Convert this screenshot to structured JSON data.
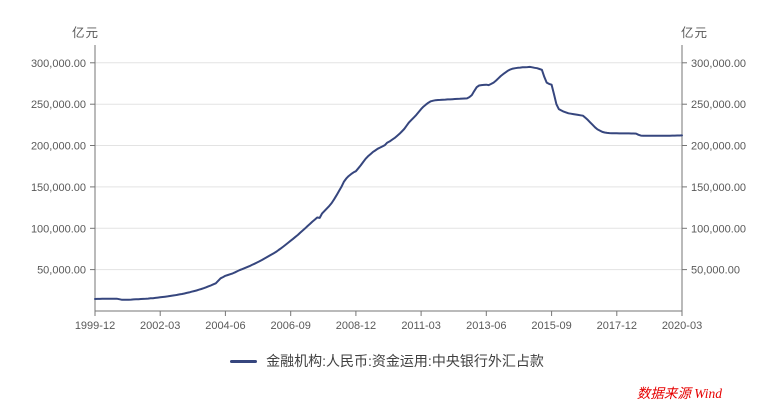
{
  "unit_left": "亿元",
  "unit_right": "亿元",
  "legend": {
    "label": "金融机构:人民币:资金运用:中央银行外汇占款"
  },
  "source": {
    "text": "数据来源 Wind"
  },
  "colors": {
    "line": "#36467e",
    "grid": "#e3e3e3",
    "axis": "#757575",
    "tick_text": "#595959",
    "legend_text": "#404040",
    "source_text": "#e60000"
  },
  "chart_data": {
    "type": "line",
    "title": "",
    "series": [
      {
        "name": "金融机构:人民币:资金运用:中央银行外汇占款",
        "color": "#36467e"
      }
    ],
    "unit": "亿元",
    "x_start": "1999-12",
    "x_end": "2020-03",
    "x_freq": "monthly",
    "x_ticks": [
      "1999-12",
      "2002-03",
      "2004-06",
      "2006-09",
      "2008-12",
      "2011-03",
      "2013-06",
      "2015-09",
      "2017-12",
      "2020-03"
    ],
    "x_tick_interval_months": 27,
    "y_ticks": [
      "50,000.00",
      "100,000.00",
      "150,000.00",
      "200,000.00",
      "250,000.00",
      "300,000.00"
    ],
    "y_tick_values": [
      50000,
      100000,
      150000,
      200000,
      250000,
      300000
    ],
    "ylim": [
      0,
      321500
    ],
    "grid": true,
    "legend_position": "bottom",
    "values": [
      14500,
      14600,
      14600,
      14700,
      14700,
      14800,
      14800,
      14800,
      14900,
      14900,
      14300,
      13700,
      13700,
      13600,
      13700,
      13800,
      14000,
      14100,
      14300,
      14500,
      14600,
      14800,
      15000,
      15300,
      15500,
      15800,
      16200,
      16500,
      16900,
      17300,
      17700,
      18100,
      18600,
      19000,
      19500,
      20100,
      20600,
      21200,
      21900,
      22500,
      23300,
      24000,
      24800,
      25700,
      26600,
      27500,
      28700,
      29800,
      31000,
      32300,
      33500,
      36500,
      39500,
      41000,
      42500,
      43500,
      44500,
      45500,
      46800,
      48200,
      49500,
      50700,
      51800,
      53000,
      54300,
      55700,
      57000,
      58500,
      60000,
      61500,
      63200,
      64800,
      66500,
      68200,
      69800,
      71500,
      73700,
      75800,
      78000,
      80300,
      82700,
      85000,
      87300,
      89700,
      92000,
      94700,
      97300,
      100000,
      102700,
      105300,
      108000,
      110500,
      113000,
      112500,
      118000,
      121000,
      124000,
      127000,
      130500,
      135000,
      140000,
      145000,
      150000,
      156000,
      160000,
      163000,
      165500,
      167500,
      169000,
      172500,
      176000,
      180000,
      184000,
      187000,
      189500,
      192000,
      194000,
      196000,
      197500,
      199000,
      200500,
      203500,
      205000,
      207000,
      209000,
      211500,
      214000,
      217000,
      220000,
      224000,
      228000,
      231000,
      234000,
      237000,
      240500,
      244000,
      247000,
      249500,
      251800,
      253500,
      254200,
      254800,
      255000,
      255200,
      255400,
      255500,
      255700,
      255800,
      256000,
      256200,
      256300,
      256500,
      256700,
      256800,
      257000,
      258500,
      261000,
      266000,
      270500,
      272500,
      273000,
      273300,
      273500,
      273000,
      274500,
      276000,
      278500,
      281200,
      284000,
      286300,
      288500,
      290500,
      292000,
      293000,
      293500,
      294000,
      294200,
      294500,
      294700,
      294800,
      295000,
      294500,
      294000,
      293500,
      292500,
      291500,
      283000,
      276000,
      274500,
      273500,
      262000,
      250000,
      244000,
      242500,
      241000,
      240000,
      239000,
      238500,
      238000,
      237500,
      237000,
      236500,
      236000,
      233500,
      231000,
      228000,
      225000,
      222000,
      219500,
      218000,
      216500,
      215800,
      215200,
      215000,
      214900,
      214800,
      214800,
      214700,
      214700,
      214700,
      214600,
      214600,
      214500,
      214500,
      214400,
      213000,
      212000,
      211900,
      211800,
      211800,
      211700,
      211700,
      211700,
      211700,
      211800,
      211800,
      211800,
      211900,
      211900,
      212000,
      212000,
      212100,
      212100,
      212200
    ]
  }
}
